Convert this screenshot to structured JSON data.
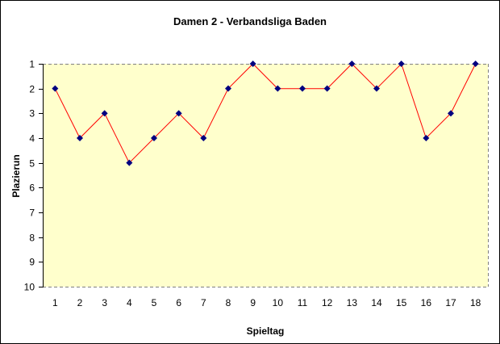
{
  "chart_data": {
    "type": "line",
    "title": "Damen 2 - Verbandsliga Baden",
    "xlabel": "Spieltag",
    "ylabel": "Plazierun",
    "categories": [
      "1",
      "2",
      "3",
      "4",
      "5",
      "6",
      "7",
      "8",
      "9",
      "10",
      "11",
      "12",
      "13",
      "14",
      "15",
      "16",
      "17",
      "18"
    ],
    "series": [
      {
        "name": "Plazierung",
        "values": [
          2,
          4,
          3,
          5,
          4,
          3,
          4,
          2,
          1,
          2,
          2,
          2,
          1,
          2,
          1,
          4,
          3,
          1
        ],
        "line_color": "#ff0000",
        "marker_color": "#000080",
        "marker": "diamond"
      }
    ],
    "yticks": [
      "1",
      "2",
      "3",
      "4",
      "5",
      "6",
      "7",
      "8",
      "9",
      "10"
    ],
    "ylim": [
      1,
      10
    ],
    "y_reversed": true,
    "grid": false,
    "legend": "none",
    "plot_background": "#ffffcc"
  }
}
